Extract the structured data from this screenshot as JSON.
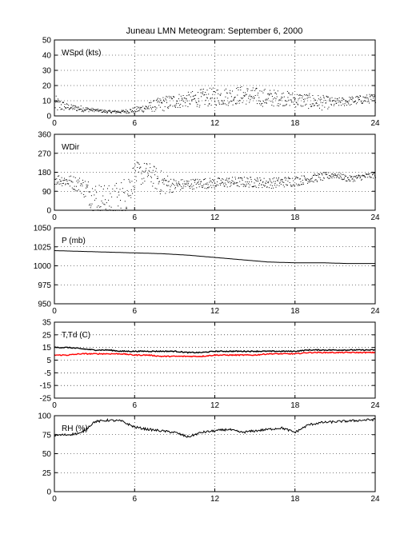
{
  "figure": {
    "title": "Juneau LMN Meteogram: September  6, 2000"
  },
  "chart_data": [
    {
      "type": "scatter",
      "label": "WSpd (kts)",
      "xlim": [
        0,
        24
      ],
      "ylim": [
        0,
        50
      ],
      "xticks": [
        "0",
        "6",
        "12",
        "18",
        "24"
      ],
      "yticks": [
        "0",
        "10",
        "20",
        "30",
        "40",
        "50"
      ],
      "grid": true,
      "series": [
        {
          "color": "#000000",
          "x": [
            0,
            1,
            2,
            3,
            4,
            5,
            6,
            7,
            8,
            9,
            10,
            11,
            12,
            13,
            14,
            15,
            16,
            17,
            18,
            19,
            20,
            21,
            22,
            23,
            24
          ],
          "y": [
            8,
            6,
            5,
            4,
            3,
            3,
            4,
            6,
            8,
            10,
            11,
            12,
            13,
            13,
            14,
            13,
            12,
            12,
            11,
            10,
            9,
            9,
            10,
            11,
            12
          ],
          "spread": [
            6,
            2,
            2,
            1,
            1,
            1,
            2,
            3,
            5,
            5,
            5,
            6,
            6,
            6,
            6,
            6,
            6,
            5,
            5,
            5,
            5,
            3,
            3,
            3,
            3
          ]
        }
      ]
    },
    {
      "type": "scatter",
      "label": "WDir",
      "xlim": [
        0,
        24
      ],
      "ylim": [
        0,
        360
      ],
      "xticks": [
        "0",
        "6",
        "12",
        "18",
        "24"
      ],
      "yticks": [
        "0",
        "90",
        "180",
        "270",
        "360"
      ],
      "grid": true,
      "series": [
        {
          "color": "#000000",
          "x": [
            0,
            1,
            2,
            3,
            4,
            5,
            6,
            7,
            8,
            9,
            10,
            11,
            12,
            13,
            14,
            15,
            16,
            17,
            18,
            19,
            20,
            21,
            22,
            23,
            24
          ],
          "y": [
            150,
            140,
            120,
            60,
            40,
            30,
            170,
            180,
            130,
            120,
            125,
            130,
            130,
            135,
            135,
            135,
            130,
            135,
            140,
            150,
            160,
            170,
            150,
            160,
            170
          ],
          "spread": [
            25,
            30,
            40,
            80,
            80,
            120,
            60,
            50,
            60,
            30,
            25,
            25,
            25,
            25,
            25,
            25,
            25,
            25,
            25,
            20,
            20,
            15,
            15,
            15,
            15
          ]
        }
      ]
    },
    {
      "type": "line",
      "label": "P (mb)",
      "xlim": [
        0,
        24
      ],
      "ylim": [
        950,
        1050
      ],
      "xticks": [
        "0",
        "6",
        "12",
        "18",
        "24"
      ],
      "yticks": [
        "950",
        "975",
        "1000",
        "1025",
        "1050"
      ],
      "grid": true,
      "series": [
        {
          "color": "#000000",
          "x": [
            0,
            2,
            4,
            6,
            8,
            10,
            12,
            14,
            16,
            18,
            20,
            22,
            24
          ],
          "y": [
            1020,
            1019,
            1018,
            1017,
            1016,
            1014,
            1011,
            1008,
            1005,
            1004,
            1004,
            1003,
            1003
          ]
        }
      ]
    },
    {
      "type": "line",
      "label": "T,Td (C)",
      "xlim": [
        0,
        24
      ],
      "ylim": [
        -25,
        35
      ],
      "xticks": [
        "0",
        "6",
        "12",
        "18",
        "24"
      ],
      "yticks": [
        "-25",
        "-15",
        "-5",
        "5",
        "15",
        "25",
        "35"
      ],
      "grid": true,
      "series": [
        {
          "color": "#000000",
          "x": [
            0,
            1,
            2,
            3,
            4,
            5,
            6,
            7,
            8,
            9,
            10,
            11,
            12,
            13,
            14,
            15,
            16,
            17,
            18,
            19,
            20,
            21,
            22,
            23,
            24
          ],
          "y": [
            15,
            15,
            14,
            13,
            13,
            12,
            12,
            12,
            12,
            12,
            11,
            11,
            12,
            12,
            12,
            12,
            12,
            12,
            12,
            13,
            13,
            13,
            13,
            13,
            13
          ]
        },
        {
          "color": "#ff0000",
          "x": [
            0,
            1,
            2,
            3,
            4,
            5,
            6,
            7,
            8,
            9,
            10,
            11,
            12,
            13,
            14,
            15,
            16,
            17,
            18,
            19,
            20,
            21,
            22,
            23,
            24
          ],
          "y": [
            9,
            9,
            10,
            10,
            10,
            10,
            9,
            9,
            8,
            8,
            8,
            8,
            9,
            9,
            9,
            9,
            10,
            10,
            10,
            11,
            11,
            11,
            11,
            11,
            11
          ]
        }
      ]
    },
    {
      "type": "line",
      "label": "RH (%)",
      "xlim": [
        0,
        24
      ],
      "ylim": [
        0,
        100
      ],
      "xticks": [
        "0",
        "6",
        "12",
        "18",
        "24"
      ],
      "yticks": [
        "0",
        "25",
        "50",
        "75",
        "100"
      ],
      "grid": true,
      "series": [
        {
          "color": "#000000",
          "x": [
            0,
            1,
            2,
            3,
            4,
            5,
            6,
            7,
            8,
            9,
            10,
            11,
            12,
            13,
            14,
            15,
            16,
            17,
            18,
            19,
            20,
            21,
            22,
            23,
            24
          ],
          "y": [
            74,
            75,
            77,
            92,
            94,
            93,
            85,
            82,
            80,
            78,
            72,
            78,
            80,
            82,
            78,
            80,
            82,
            84,
            78,
            88,
            91,
            92,
            93,
            94,
            95
          ]
        }
      ]
    }
  ]
}
